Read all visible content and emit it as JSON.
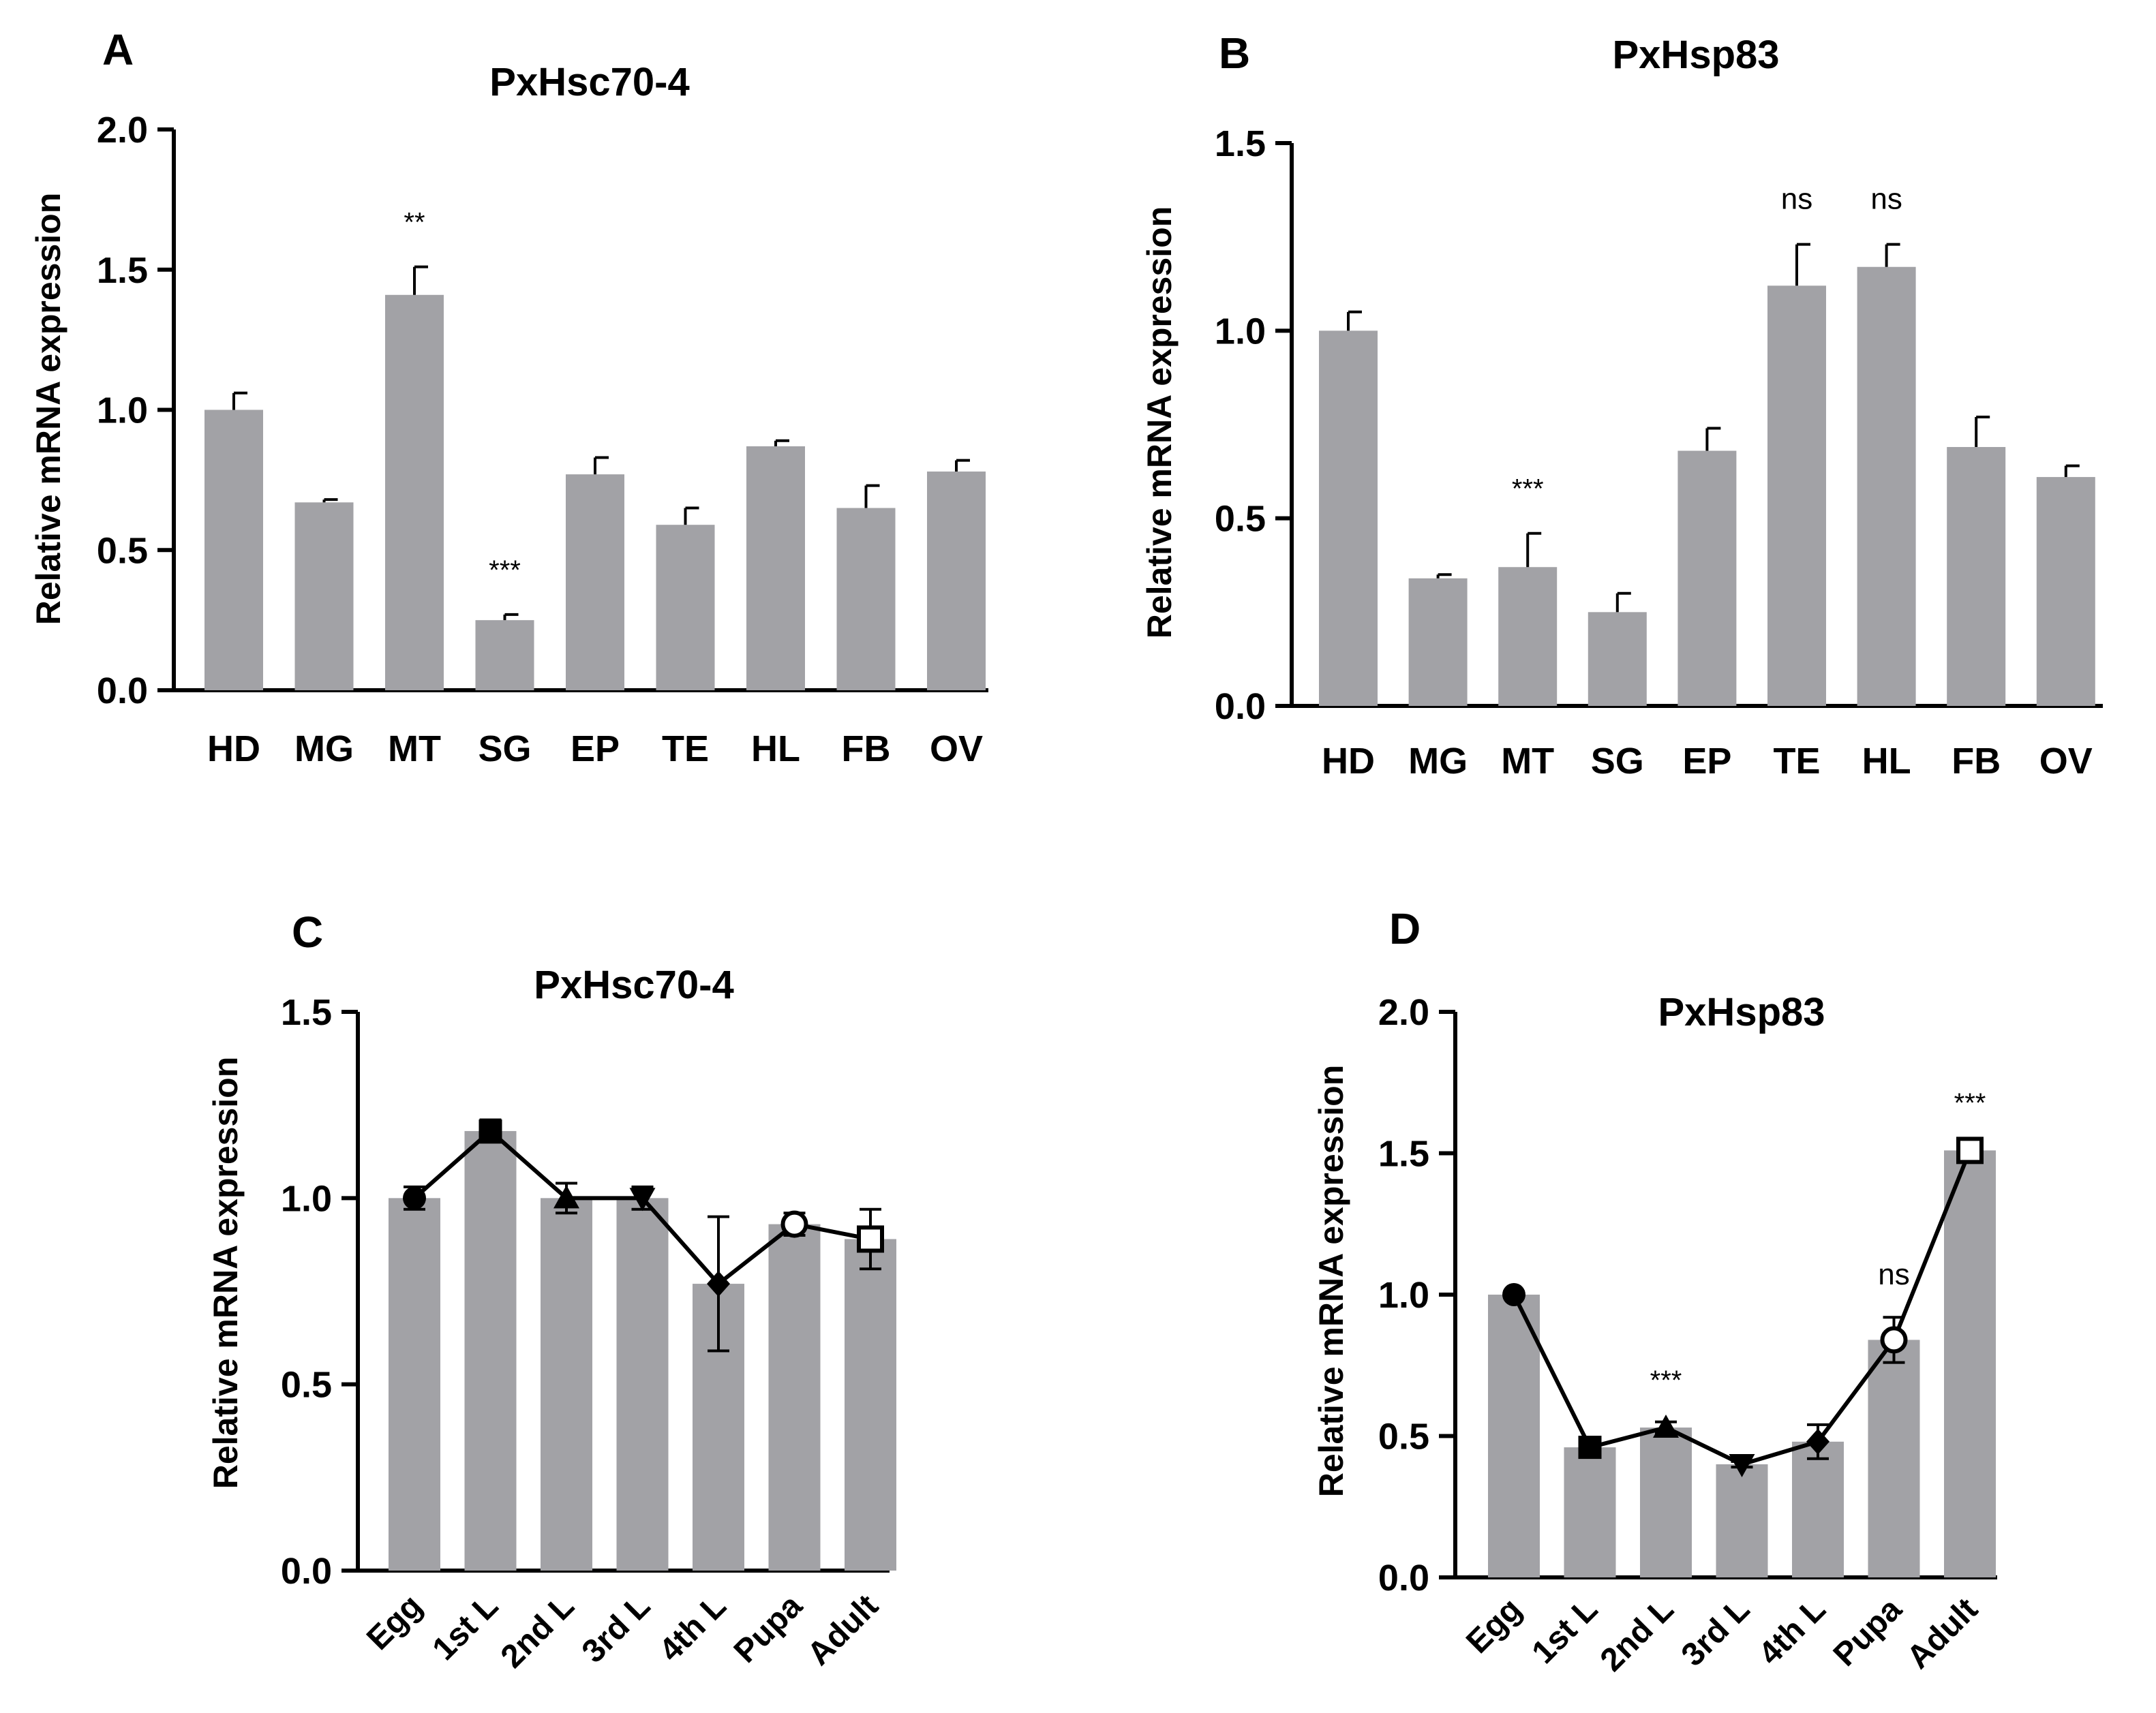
{
  "chart_data": [
    {
      "panel": "A",
      "type": "bar",
      "title": "PxHsc70-4",
      "ylabel": "Relative mRNA expression",
      "xlabel": "",
      "ylim": [
        0,
        2.0
      ],
      "yticks": [
        "0.0",
        "0.5",
        "1.0",
        "1.5",
        "2.0"
      ],
      "categories": [
        "HD",
        "MG",
        "MT",
        "SG",
        "EP",
        "TE",
        "HL",
        "FB",
        "OV"
      ],
      "values": [
        1.0,
        0.67,
        1.41,
        0.25,
        0.77,
        0.59,
        0.87,
        0.65,
        0.78
      ],
      "errors": [
        0.06,
        0.01,
        0.1,
        0.02,
        0.06,
        0.06,
        0.02,
        0.08,
        0.04
      ],
      "annotations": [
        "",
        "",
        "**",
        "***",
        "",
        "",
        "",
        "",
        ""
      ]
    },
    {
      "panel": "B",
      "type": "bar",
      "title": "PxHsp83",
      "ylabel": "Relative mRNA expression",
      "xlabel": "",
      "ylim": [
        0,
        1.5
      ],
      "yticks": [
        "0.0",
        "0.5",
        "1.0",
        "1.5"
      ],
      "categories": [
        "HD",
        "MG",
        "MT",
        "SG",
        "EP",
        "TE",
        "HL",
        "FB",
        "OV"
      ],
      "values": [
        1.0,
        0.34,
        0.37,
        0.25,
        0.68,
        1.12,
        1.17,
        0.69,
        0.61
      ],
      "errors": [
        0.05,
        0.01,
        0.09,
        0.05,
        0.06,
        0.11,
        0.06,
        0.08,
        0.03
      ],
      "annotations": [
        "",
        "",
        "***",
        "",
        "",
        "ns",
        "ns",
        "",
        ""
      ]
    },
    {
      "panel": "C",
      "type": "bar+line",
      "title": "PxHsc70-4",
      "ylabel": "Relative mRNA expression",
      "xlabel": "",
      "ylim": [
        0,
        1.5
      ],
      "yticks": [
        "0.0",
        "0.5",
        "1.0",
        "1.5"
      ],
      "categories": [
        "Egg",
        "1st L",
        "2nd L",
        "3rd L",
        "4th L",
        "Pupa",
        "Adult"
      ],
      "values": [
        1.0,
        1.18,
        1.0,
        1.0,
        0.77,
        0.93,
        0.89
      ],
      "errors": [
        0.03,
        0.03,
        0.04,
        0.03,
        0.18,
        0.03,
        0.08
      ],
      "markers": [
        "circle",
        "square",
        "triangle-up",
        "triangle-down",
        "diamond",
        "circle-open",
        "square-open"
      ],
      "annotations": [
        "",
        "",
        "",
        "",
        "",
        "",
        ""
      ]
    },
    {
      "panel": "D",
      "type": "bar+line",
      "title": "PxHsp83",
      "ylabel": "Relative mRNA expression",
      "xlabel": "",
      "ylim": [
        0,
        2.0
      ],
      "yticks": [
        "0.0",
        "0.5",
        "1.0",
        "1.5",
        "2.0"
      ],
      "categories": [
        "Egg",
        "1st L",
        "2nd L",
        "3rd L",
        "4th L",
        "Pupa",
        "Adult"
      ],
      "values": [
        1.0,
        0.46,
        0.53,
        0.4,
        0.48,
        0.84,
        1.51
      ],
      "errors": [
        0.01,
        0.01,
        0.02,
        0.01,
        0.06,
        0.08,
        0.02
      ],
      "markers": [
        "circle",
        "square",
        "triangle-up",
        "triangle-down",
        "diamond",
        "circle-open",
        "square-open"
      ],
      "annotations": [
        "",
        "",
        "***",
        "",
        "",
        "ns",
        "***"
      ]
    }
  ]
}
